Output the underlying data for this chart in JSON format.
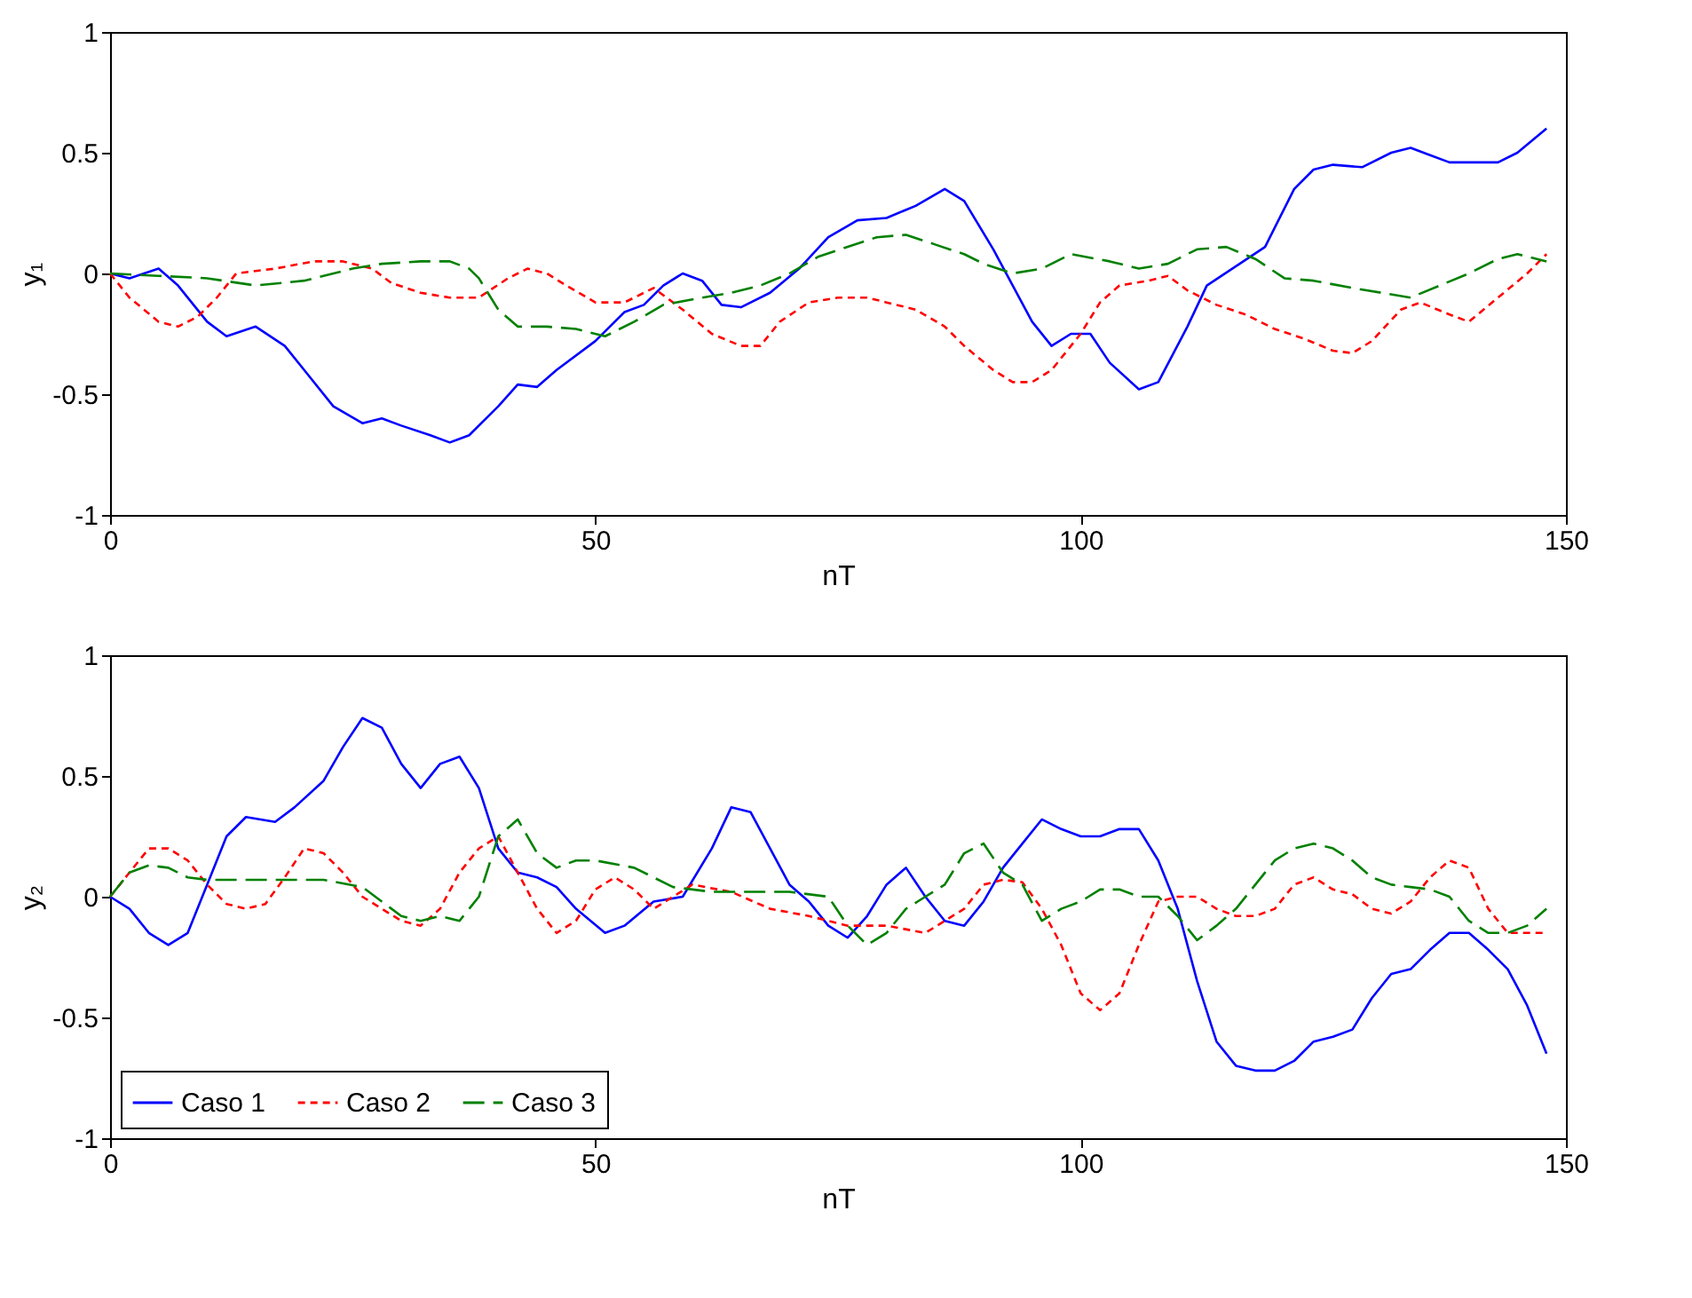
{
  "chart_data": [
    {
      "type": "line",
      "xlabel": "nT",
      "ylabel": "y₁",
      "xlim": [
        0,
        150
      ],
      "xticks": [
        0,
        50,
        100,
        150
      ],
      "ylim": [
        -1,
        1
      ],
      "yticks": [
        -1,
        -0.5,
        0,
        0.5,
        1
      ],
      "grid": false,
      "legend": false,
      "series": [
        {
          "color": "#0000ff",
          "line_style": "solid",
          "x": [
            0,
            2,
            5,
            7,
            10,
            12,
            15,
            18,
            20,
            23,
            26,
            28,
            30,
            33,
            35,
            37,
            40,
            42,
            44,
            46,
            50,
            53,
            55,
            57,
            59,
            61,
            63,
            65,
            68,
            71,
            74,
            77,
            80,
            83,
            86,
            88,
            91,
            93,
            95,
            97,
            99,
            101,
            103,
            106,
            108,
            111,
            113,
            116,
            119,
            122,
            124,
            126,
            129,
            132,
            134,
            136,
            138,
            141,
            143,
            145,
            148
          ],
          "values": [
            0,
            -0.02,
            0.02,
            -0.05,
            -0.2,
            -0.26,
            -0.22,
            -0.3,
            -0.4,
            -0.55,
            -0.62,
            -0.6,
            -0.63,
            -0.67,
            -0.7,
            -0.67,
            -0.55,
            -0.46,
            -0.47,
            -0.4,
            -0.28,
            -0.16,
            -0.13,
            -0.05,
            0.0,
            -0.03,
            -0.13,
            -0.14,
            -0.08,
            0.02,
            0.15,
            0.22,
            0.23,
            0.28,
            0.35,
            0.3,
            0.1,
            -0.05,
            -0.2,
            -0.3,
            -0.25,
            -0.25,
            -0.37,
            -0.48,
            -0.45,
            -0.22,
            -0.05,
            0.03,
            0.11,
            0.35,
            0.43,
            0.45,
            0.44,
            0.5,
            0.52,
            0.49,
            0.46,
            0.46,
            0.46,
            0.5,
            0.6
          ]
        },
        {
          "color": "#ff0000",
          "line_style": "dotted",
          "x": [
            0,
            2,
            5,
            7,
            9,
            11,
            13,
            17,
            21,
            24,
            27,
            29,
            32,
            35,
            38,
            41,
            43,
            45,
            47,
            50,
            53,
            56,
            59,
            62,
            65,
            67,
            69,
            72,
            75,
            78,
            80,
            83,
            86,
            88,
            91,
            93,
            95,
            97,
            100,
            102,
            104,
            107,
            109,
            111,
            114,
            117,
            120,
            123,
            126,
            128,
            130,
            133,
            135,
            138,
            140,
            143,
            146,
            148
          ],
          "values": [
            0,
            -0.1,
            -0.2,
            -0.22,
            -0.18,
            -0.1,
            0.0,
            0.02,
            0.05,
            0.05,
            0.02,
            -0.04,
            -0.08,
            -0.1,
            -0.1,
            -0.02,
            0.02,
            0.0,
            -0.05,
            -0.12,
            -0.12,
            -0.06,
            -0.15,
            -0.25,
            -0.3,
            -0.3,
            -0.2,
            -0.12,
            -0.1,
            -0.1,
            -0.12,
            -0.15,
            -0.22,
            -0.3,
            -0.4,
            -0.45,
            -0.45,
            -0.4,
            -0.25,
            -0.12,
            -0.05,
            -0.03,
            -0.01,
            -0.07,
            -0.13,
            -0.17,
            -0.23,
            -0.27,
            -0.32,
            -0.33,
            -0.28,
            -0.15,
            -0.12,
            -0.17,
            -0.2,
            -0.1,
            0.0,
            0.08
          ]
        },
        {
          "color": "#008000",
          "line_style": "dashed",
          "x": [
            0,
            5,
            10,
            15,
            20,
            25,
            28,
            32,
            35,
            37,
            38,
            40,
            42,
            45,
            48,
            51,
            54,
            57,
            61,
            64,
            67,
            70,
            73,
            76,
            79,
            82,
            85,
            88,
            90,
            93,
            96,
            99,
            103,
            106,
            109,
            112,
            115,
            118,
            121,
            124,
            128,
            131,
            134,
            137,
            140,
            143,
            145,
            148
          ],
          "values": [
            0,
            -0.01,
            -0.02,
            -0.05,
            -0.03,
            0.02,
            0.04,
            0.05,
            0.05,
            0.02,
            -0.02,
            -0.15,
            -0.22,
            -0.22,
            -0.23,
            -0.26,
            -0.2,
            -0.13,
            -0.1,
            -0.08,
            -0.05,
            0.0,
            0.07,
            0.11,
            0.15,
            0.16,
            0.12,
            0.08,
            0.04,
            0.0,
            0.02,
            0.08,
            0.05,
            0.02,
            0.04,
            0.1,
            0.11,
            0.06,
            -0.02,
            -0.03,
            -0.06,
            -0.08,
            -0.1,
            -0.05,
            0.0,
            0.06,
            0.08,
            0.05
          ]
        }
      ]
    },
    {
      "type": "line",
      "xlabel": "nT",
      "ylabel": "y₂",
      "xlim": [
        0,
        150
      ],
      "xticks": [
        0,
        50,
        100,
        150
      ],
      "ylim": [
        -1,
        1
      ],
      "yticks": [
        -1,
        -0.5,
        0,
        0.5,
        1
      ],
      "grid": false,
      "legend": "bottom left",
      "series": [
        {
          "name": "Caso 1",
          "color": "#0000ff",
          "line_style": "solid",
          "x": [
            0,
            2,
            4,
            6,
            8,
            10,
            12,
            14,
            17,
            19,
            22,
            24,
            26,
            28,
            30,
            32,
            34,
            36,
            38,
            40,
            42,
            44,
            46,
            48,
            51,
            53,
            56,
            59,
            62,
            64,
            66,
            68,
            70,
            72,
            74,
            76,
            78,
            80,
            82,
            84,
            86,
            88,
            90,
            92,
            94,
            96,
            98,
            100,
            102,
            104,
            106,
            108,
            110,
            112,
            114,
            116,
            118,
            120,
            122,
            124,
            126,
            128,
            130,
            132,
            134,
            136,
            138,
            140,
            142,
            144,
            146,
            148
          ],
          "values": [
            0,
            -0.05,
            -0.15,
            -0.2,
            -0.15,
            0.05,
            0.25,
            0.33,
            0.31,
            0.37,
            0.48,
            0.62,
            0.74,
            0.7,
            0.55,
            0.45,
            0.55,
            0.58,
            0.45,
            0.2,
            0.1,
            0.08,
            0.04,
            -0.05,
            -0.15,
            -0.12,
            -0.02,
            0.0,
            0.2,
            0.37,
            0.35,
            0.2,
            0.05,
            -0.02,
            -0.12,
            -0.17,
            -0.08,
            0.05,
            0.12,
            0.0,
            -0.1,
            -0.12,
            -0.02,
            0.12,
            0.22,
            0.32,
            0.28,
            0.25,
            0.25,
            0.28,
            0.28,
            0.15,
            -0.05,
            -0.35,
            -0.6,
            -0.7,
            -0.72,
            -0.72,
            -0.68,
            -0.6,
            -0.58,
            -0.55,
            -0.42,
            -0.32,
            -0.3,
            -0.22,
            -0.15,
            -0.15,
            -0.22,
            -0.3,
            -0.45,
            -0.65
          ]
        },
        {
          "name": "Caso 2",
          "color": "#ff0000",
          "line_style": "dotted",
          "x": [
            0,
            2,
            4,
            6,
            8,
            10,
            12,
            14,
            16,
            18,
            20,
            22,
            24,
            26,
            28,
            30,
            32,
            34,
            36,
            38,
            40,
            42,
            44,
            46,
            48,
            50,
            52,
            54,
            56,
            58,
            60,
            64,
            68,
            72,
            76,
            80,
            84,
            86,
            88,
            90,
            92,
            94,
            96,
            98,
            100,
            102,
            104,
            106,
            108,
            110,
            112,
            114,
            116,
            118,
            120,
            122,
            124,
            126,
            128,
            130,
            132,
            134,
            136,
            138,
            140,
            142,
            144,
            146,
            148
          ],
          "values": [
            0,
            0.1,
            0.2,
            0.2,
            0.15,
            0.05,
            -0.03,
            -0.05,
            -0.03,
            0.08,
            0.2,
            0.18,
            0.1,
            0.0,
            -0.05,
            -0.1,
            -0.12,
            -0.05,
            0.1,
            0.2,
            0.25,
            0.1,
            -0.05,
            -0.15,
            -0.1,
            0.03,
            0.08,
            0.03,
            -0.05,
            0.0,
            0.05,
            0.02,
            -0.05,
            -0.08,
            -0.12,
            -0.12,
            -0.15,
            -0.1,
            -0.05,
            0.05,
            0.07,
            0.06,
            -0.05,
            -0.2,
            -0.4,
            -0.47,
            -0.4,
            -0.2,
            -0.02,
            0.0,
            0.0,
            -0.05,
            -0.08,
            -0.08,
            -0.05,
            0.05,
            0.08,
            0.03,
            0.01,
            -0.05,
            -0.07,
            -0.02,
            0.08,
            0.15,
            0.12,
            -0.05,
            -0.15,
            -0.15,
            -0.15
          ]
        },
        {
          "name": "Caso 3",
          "color": "#008000",
          "line_style": "dashed",
          "x": [
            0,
            2,
            4,
            6,
            8,
            10,
            14,
            18,
            22,
            26,
            28,
            30,
            32,
            34,
            36,
            38,
            40,
            42,
            44,
            46,
            48,
            50,
            54,
            58,
            62,
            66,
            70,
            74,
            76,
            78,
            80,
            82,
            84,
            86,
            88,
            90,
            92,
            94,
            96,
            98,
            100,
            102,
            104,
            106,
            108,
            110,
            112,
            114,
            116,
            118,
            120,
            122,
            124,
            126,
            128,
            130,
            132,
            134,
            136,
            138,
            140,
            142,
            144,
            146,
            148
          ],
          "values": [
            0,
            0.1,
            0.13,
            0.12,
            0.08,
            0.07,
            0.07,
            0.07,
            0.07,
            0.04,
            -0.02,
            -0.08,
            -0.1,
            -0.08,
            -0.1,
            0.0,
            0.25,
            0.32,
            0.18,
            0.12,
            0.15,
            0.15,
            0.12,
            0.04,
            0.02,
            0.02,
            0.02,
            0.0,
            -0.12,
            -0.2,
            -0.15,
            -0.05,
            0.0,
            0.05,
            0.18,
            0.22,
            0.1,
            0.05,
            -0.1,
            -0.05,
            -0.02,
            0.03,
            0.03,
            0.0,
            0.0,
            -0.08,
            -0.18,
            -0.12,
            -0.05,
            0.05,
            0.15,
            0.2,
            0.22,
            0.2,
            0.15,
            0.08,
            0.05,
            0.04,
            0.03,
            0.0,
            -0.1,
            -0.15,
            -0.15,
            -0.12,
            -0.05
          ]
        }
      ]
    }
  ]
}
